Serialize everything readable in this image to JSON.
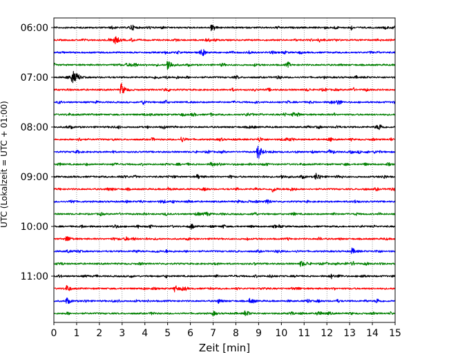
{
  "chart_data": {
    "type": "line",
    "title": "",
    "xlabel": "Zeit  [min]",
    "ylabel": "UTC (Lokalzeit = UTC + 01:00)",
    "xlim": [
      0,
      15
    ],
    "x_ticks": [
      0,
      1,
      2,
      3,
      4,
      5,
      6,
      7,
      8,
      9,
      10,
      11,
      12,
      13,
      14,
      15
    ],
    "x_tick_labels": [
      "0",
      "1",
      "2",
      "3",
      "4",
      "5",
      "6",
      "7",
      "8",
      "9",
      "10",
      "11",
      "12",
      "13",
      "14",
      "15"
    ],
    "y_tick_labels": [
      "06:00",
      "07:00",
      "08:00",
      "09:00",
      "10:00",
      "11:00"
    ],
    "grid": "vertical dotted lines at each minute",
    "trace_interval_minutes": 15,
    "color_cycle": [
      "#000000",
      "#ff0000",
      "#0000ff",
      "#008000"
    ],
    "traces": [
      {
        "start": "06:00",
        "color": "#000000",
        "events": [
          {
            "x": 6.9,
            "amp": 1.0
          },
          {
            "x": 3.4,
            "amp": 0.5
          }
        ]
      },
      {
        "start": "06:15",
        "color": "#ff0000",
        "events": [
          {
            "x": 2.65,
            "amp": 2.2
          },
          {
            "x": 3.4,
            "amp": 0.5
          }
        ]
      },
      {
        "start": "06:30",
        "color": "#0000ff",
        "events": [
          {
            "x": 4.9,
            "amp": 0.4
          }
        ]
      },
      {
        "start": "06:45",
        "color": "#008000",
        "events": [
          {
            "x": 5.0,
            "amp": 2.6
          },
          {
            "x": 8.8,
            "amp": 0.4
          }
        ]
      },
      {
        "start": "07:00",
        "color": "#000000",
        "events": [
          {
            "x": 0.8,
            "amp": 2.8
          }
        ]
      },
      {
        "start": "07:15",
        "color": "#ff0000",
        "events": [
          {
            "x": 2.95,
            "amp": 2.4
          }
        ]
      },
      {
        "start": "07:30",
        "color": "#0000ff",
        "events": [
          {
            "x": 11.2,
            "amp": 0.4
          }
        ]
      },
      {
        "start": "07:45",
        "color": "#008000",
        "events": [
          {
            "x": 10.5,
            "amp": 0.4
          }
        ]
      },
      {
        "start": "08:00",
        "color": "#000000",
        "events": [
          {
            "x": 14.3,
            "amp": 0.7
          }
        ]
      },
      {
        "start": "08:15",
        "color": "#ff0000",
        "events": [
          {
            "x": 5.6,
            "amp": 1.0
          },
          {
            "x": 9.0,
            "amp": 1.0
          }
        ]
      },
      {
        "start": "08:30",
        "color": "#0000ff",
        "events": [
          {
            "x": 8.95,
            "amp": 3.2
          },
          {
            "x": 12.1,
            "amp": 0.6
          }
        ]
      },
      {
        "start": "08:45",
        "color": "#008000",
        "events": [
          {
            "x": 6.9,
            "amp": 0.9
          },
          {
            "x": 2.6,
            "amp": 0.5
          }
        ]
      },
      {
        "start": "09:00",
        "color": "#000000",
        "events": [
          {
            "x": 11.5,
            "amp": 1.3
          },
          {
            "x": 6.3,
            "amp": 0.8
          },
          {
            "x": 10.0,
            "amp": 0.7
          }
        ]
      },
      {
        "start": "09:15",
        "color": "#ff0000",
        "events": [
          {
            "x": 9.6,
            "amp": 1.1
          },
          {
            "x": 5.0,
            "amp": 0.6
          }
        ]
      },
      {
        "start": "09:30",
        "color": "#0000ff",
        "events": [
          {
            "x": 8.1,
            "amp": 0.4
          }
        ]
      },
      {
        "start": "09:45",
        "color": "#008000",
        "events": [
          {
            "x": 6.7,
            "amp": 0.4
          }
        ]
      },
      {
        "start": "10:00",
        "color": "#000000",
        "events": [
          {
            "x": 1.2,
            "amp": 0.5
          },
          {
            "x": 9.9,
            "amp": 0.4
          }
        ]
      },
      {
        "start": "10:15",
        "color": "#ff0000",
        "events": [
          {
            "x": 0.55,
            "amp": 1.3
          }
        ]
      },
      {
        "start": "10:30",
        "color": "#0000ff",
        "events": [
          {
            "x": 13.1,
            "amp": 1.1
          }
        ]
      },
      {
        "start": "10:45",
        "color": "#008000",
        "events": [
          {
            "x": 10.85,
            "amp": 1.1
          }
        ]
      },
      {
        "start": "11:00",
        "color": "#000000",
        "events": [
          {
            "x": 13.5,
            "amp": 0.6
          }
        ]
      },
      {
        "start": "11:15",
        "color": "#ff0000",
        "events": [
          {
            "x": 5.3,
            "amp": 1.2
          }
        ]
      },
      {
        "start": "11:30",
        "color": "#0000ff",
        "events": [
          {
            "x": 0.55,
            "amp": 0.9
          },
          {
            "x": 7.2,
            "amp": 0.9
          },
          {
            "x": 8.6,
            "amp": 0.8
          },
          {
            "x": 14.2,
            "amp": 0.5
          }
        ]
      },
      {
        "start": "11:45",
        "color": "#008000",
        "events": [
          {
            "x": 8.4,
            "amp": 0.8
          },
          {
            "x": 11.6,
            "amp": 1.0
          }
        ]
      }
    ]
  }
}
